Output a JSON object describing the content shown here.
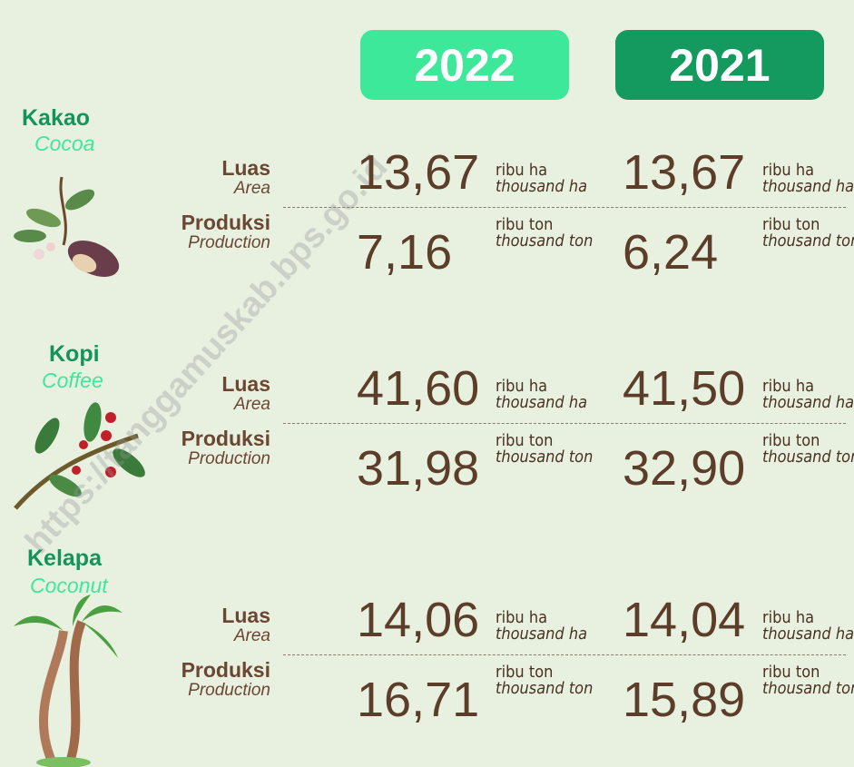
{
  "watermark": "https://tanggamuskab.bps.go.id",
  "years": [
    "2022",
    "2021"
  ],
  "crops": [
    {
      "name": "Kakao",
      "name_en": "Cocoa",
      "rows": [
        {
          "label": "Luas",
          "label_en": "Area",
          "values": [
            "13,67",
            "13,67"
          ],
          "unit": "ribu ha",
          "unit_en": "thousand ha"
        },
        {
          "label": "Produksi",
          "label_en": "Production",
          "values": [
            "7,16",
            "6,24"
          ],
          "unit": "ribu ton",
          "unit_en": "thousand ton"
        }
      ]
    },
    {
      "name": "Kopi",
      "name_en": "Coffee",
      "rows": [
        {
          "label": "Luas",
          "label_en": "Area",
          "values": [
            "41,60",
            "41,50"
          ],
          "unit": "ribu ha",
          "unit_en": "thousand ha"
        },
        {
          "label": "Produksi",
          "label_en": "Production",
          "values": [
            "31,98",
            "32,90"
          ],
          "unit": "ribu ton",
          "unit_en": "thousand ton"
        }
      ]
    },
    {
      "name": "Kelapa",
      "name_en": "Coconut",
      "rows": [
        {
          "label": "Luas",
          "label_en": "Area",
          "values": [
            "14,06",
            "14,04"
          ],
          "unit": "ribu ha",
          "unit_en": "thousand ha"
        },
        {
          "label": "Produksi",
          "label_en": "Production",
          "values": [
            "16,71",
            "15,89"
          ],
          "unit": "ribu ton",
          "unit_en": "thousand ton"
        }
      ]
    }
  ]
}
